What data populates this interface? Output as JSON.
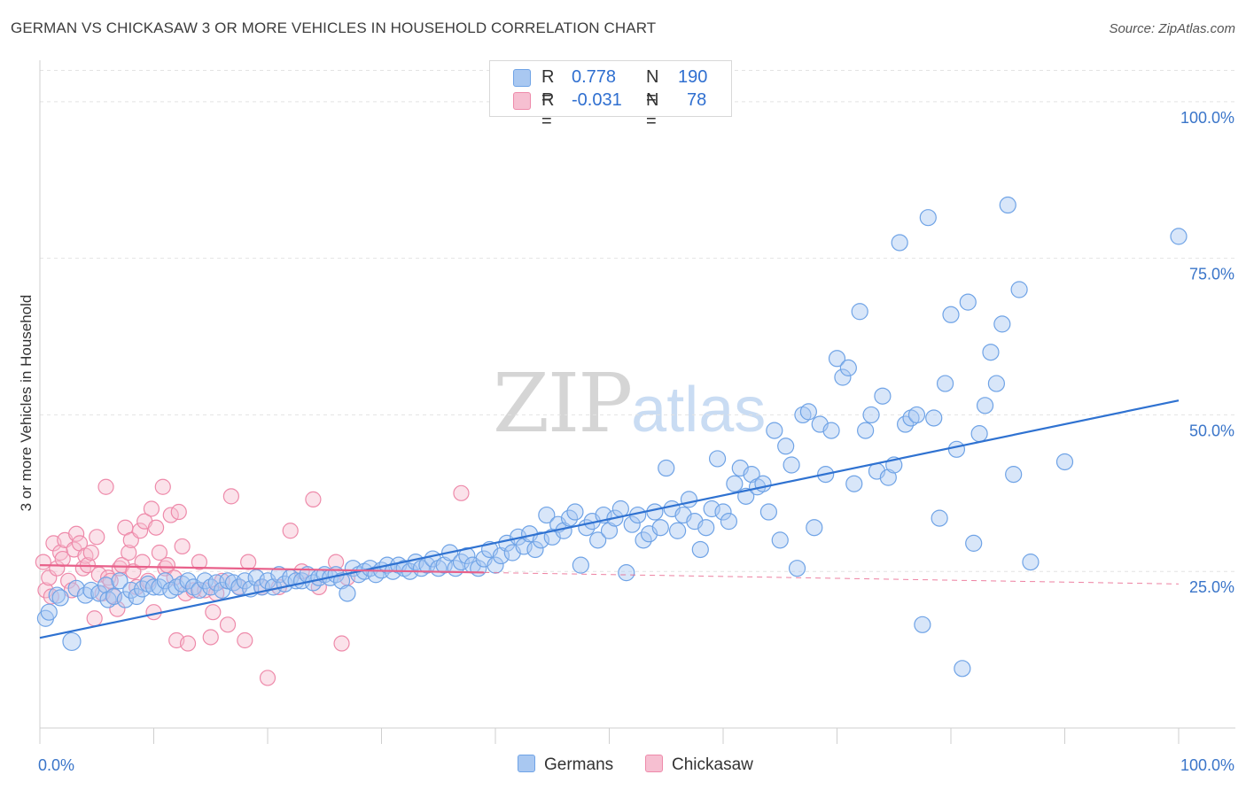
{
  "title": "GERMAN VS CHICKASAW 3 OR MORE VEHICLES IN HOUSEHOLD CORRELATION CHART",
  "source": "Source: ZipAtlas.com",
  "watermark": {
    "zip": "ZIP",
    "atlas": "atlas"
  },
  "colors": {
    "blue": "#6fa3e6",
    "blue_fill": "#a9c8f1",
    "blue_line": "#2f72d1",
    "pink": "#ee8aaa",
    "pink_fill": "#f6bfd1",
    "pink_line": "#e8608a",
    "tick_text": "#3a75c9"
  },
  "legend_top": [
    {
      "r_label": "R =",
      "r_value": "0.778",
      "n_label": "N =",
      "n_value": "190"
    },
    {
      "r_label": "R =",
      "r_value": "-0.031",
      "n_label": "N =",
      "n_value": "78"
    }
  ],
  "legend_bottom": [
    {
      "label": "Germans"
    },
    {
      "label": "Chickasaw"
    }
  ],
  "chart_data": {
    "type": "scatter",
    "title": "GERMAN VS CHICKASAW 3 OR MORE VEHICLES IN HOUSEHOLD CORRELATION CHART",
    "xlabel": "",
    "ylabel": "3 or more Vehicles in Household",
    "xlim": [
      0,
      100
    ],
    "ylim": [
      0,
      105
    ],
    "x_tick_labels": [
      "0.0%",
      "100.0%"
    ],
    "y_ticks": [
      25,
      50,
      75,
      100
    ],
    "y_tick_labels": [
      "25.0%",
      "50.0%",
      "75.0%",
      "100.0%"
    ],
    "grid": "horizontal dashed",
    "legend_position": "top-center",
    "series": [
      {
        "name": "Germans",
        "r": 0.778,
        "n": 190,
        "trend": {
          "x": [
            0,
            100
          ],
          "y": [
            14.4,
            52.3
          ],
          "style": "solid"
        },
        "points": [
          [
            0.5,
            17.5
          ],
          [
            0.8,
            18.5
          ],
          [
            1.5,
            21.2
          ],
          [
            1.8,
            20.8
          ],
          [
            2.8,
            13.8
          ],
          [
            3.2,
            22.3
          ],
          [
            4.0,
            21.2
          ],
          [
            4.5,
            22.0
          ],
          [
            5.2,
            21.5
          ],
          [
            5.8,
            22.8
          ],
          [
            6.0,
            20.5
          ],
          [
            6.5,
            21.0
          ],
          [
            7.0,
            23.5
          ],
          [
            7.5,
            20.5
          ],
          [
            8.0,
            22.0
          ],
          [
            8.5,
            21.0
          ],
          [
            9.0,
            22.2
          ],
          [
            9.5,
            23.0
          ],
          [
            10.0,
            22.5
          ],
          [
            10.5,
            22.5
          ],
          [
            11.0,
            23.5
          ],
          [
            11.5,
            22.0
          ],
          [
            12.0,
            22.5
          ],
          [
            12.5,
            23.0
          ],
          [
            13.0,
            23.5
          ],
          [
            13.5,
            22.5
          ],
          [
            14.0,
            22.0
          ],
          [
            14.5,
            23.5
          ],
          [
            15.0,
            22.5
          ],
          [
            15.5,
            23.2
          ],
          [
            16.0,
            22.0
          ],
          [
            16.5,
            23.5
          ],
          [
            17.0,
            23.2
          ],
          [
            17.5,
            22.5
          ],
          [
            18.0,
            23.5
          ],
          [
            18.5,
            22.2
          ],
          [
            19.0,
            24.0
          ],
          [
            19.5,
            22.5
          ],
          [
            20.0,
            23.5
          ],
          [
            20.5,
            22.5
          ],
          [
            21.0,
            24.5
          ],
          [
            21.5,
            23.0
          ],
          [
            22.0,
            24.0
          ],
          [
            22.5,
            23.5
          ],
          [
            23.0,
            23.5
          ],
          [
            23.5,
            24.5
          ],
          [
            24.0,
            23.2
          ],
          [
            24.5,
            24.0
          ],
          [
            25.0,
            24.5
          ],
          [
            25.5,
            24.0
          ],
          [
            26.0,
            24.5
          ],
          [
            26.5,
            23.5
          ],
          [
            27.0,
            21.5
          ],
          [
            27.5,
            25.5
          ],
          [
            28.0,
            24.5
          ],
          [
            28.5,
            25.0
          ],
          [
            29.0,
            25.5
          ],
          [
            29.5,
            24.5
          ],
          [
            30.0,
            25.2
          ],
          [
            30.5,
            26.0
          ],
          [
            31.0,
            25.0
          ],
          [
            31.5,
            26.0
          ],
          [
            32.0,
            25.5
          ],
          [
            32.5,
            25.0
          ],
          [
            33.0,
            26.5
          ],
          [
            33.5,
            25.5
          ],
          [
            34.0,
            26.0
          ],
          [
            34.5,
            27.0
          ],
          [
            35.0,
            25.5
          ],
          [
            35.5,
            26.0
          ],
          [
            36.0,
            28.0
          ],
          [
            36.5,
            25.5
          ],
          [
            37.0,
            26.5
          ],
          [
            37.5,
            27.5
          ],
          [
            38.0,
            26.0
          ],
          [
            38.5,
            25.5
          ],
          [
            39.0,
            27.0
          ],
          [
            39.5,
            28.5
          ],
          [
            40.0,
            26.0
          ],
          [
            40.5,
            27.5
          ],
          [
            41.0,
            29.5
          ],
          [
            41.5,
            28.0
          ],
          [
            42.0,
            30.5
          ],
          [
            42.5,
            29.0
          ],
          [
            43.0,
            31.0
          ],
          [
            43.5,
            28.5
          ],
          [
            44.0,
            30.0
          ],
          [
            44.5,
            34.0
          ],
          [
            45.0,
            30.5
          ],
          [
            45.5,
            32.5
          ],
          [
            46.0,
            31.5
          ],
          [
            46.5,
            33.5
          ],
          [
            47.0,
            34.5
          ],
          [
            47.5,
            26.0
          ],
          [
            48.0,
            32.0
          ],
          [
            48.5,
            33.0
          ],
          [
            49.0,
            30.0
          ],
          [
            49.5,
            34.0
          ],
          [
            50.0,
            31.5
          ],
          [
            50.5,
            33.5
          ],
          [
            51.0,
            35.0
          ],
          [
            51.5,
            24.8
          ],
          [
            52.0,
            32.5
          ],
          [
            52.5,
            34.0
          ],
          [
            53.0,
            30.0
          ],
          [
            53.5,
            31.0
          ],
          [
            54.0,
            34.5
          ],
          [
            54.5,
            32.0
          ],
          [
            55.0,
            41.5
          ],
          [
            55.5,
            35.0
          ],
          [
            56.0,
            31.5
          ],
          [
            56.5,
            34.0
          ],
          [
            57.0,
            36.5
          ],
          [
            57.5,
            33.0
          ],
          [
            58.0,
            28.5
          ],
          [
            58.5,
            32.0
          ],
          [
            59.0,
            35.0
          ],
          [
            59.5,
            43.0
          ],
          [
            60.0,
            34.5
          ],
          [
            60.5,
            33.0
          ],
          [
            61.0,
            39.0
          ],
          [
            61.5,
            41.5
          ],
          [
            62.0,
            37.0
          ],
          [
            62.5,
            40.5
          ],
          [
            63.0,
            38.5
          ],
          [
            63.5,
            39.0
          ],
          [
            64.0,
            34.5
          ],
          [
            64.5,
            47.5
          ],
          [
            65.0,
            30.0
          ],
          [
            65.5,
            45.0
          ],
          [
            66.0,
            42.0
          ],
          [
            66.5,
            25.5
          ],
          [
            67.0,
            50.0
          ],
          [
            67.5,
            50.5
          ],
          [
            68.0,
            32.0
          ],
          [
            68.5,
            48.5
          ],
          [
            69.0,
            40.5
          ],
          [
            69.5,
            47.5
          ],
          [
            70.0,
            59.0
          ],
          [
            70.5,
            56.0
          ],
          [
            71.0,
            57.5
          ],
          [
            71.5,
            39.0
          ],
          [
            72.0,
            66.5
          ],
          [
            72.5,
            47.5
          ],
          [
            73.0,
            50.0
          ],
          [
            73.5,
            41.0
          ],
          [
            74.0,
            53.0
          ],
          [
            74.5,
            40.0
          ],
          [
            75.0,
            42.0
          ],
          [
            75.5,
            77.5
          ],
          [
            76.0,
            48.5
          ],
          [
            76.5,
            49.5
          ],
          [
            77.0,
            50.0
          ],
          [
            77.5,
            16.5
          ],
          [
            78.0,
            81.5
          ],
          [
            78.5,
            49.5
          ],
          [
            79.0,
            33.5
          ],
          [
            79.5,
            55.0
          ],
          [
            80.0,
            66.0
          ],
          [
            80.5,
            44.5
          ],
          [
            81.0,
            9.5
          ],
          [
            81.5,
            68.0
          ],
          [
            82.0,
            29.5
          ],
          [
            82.5,
            47.0
          ],
          [
            83.0,
            51.5
          ],
          [
            83.5,
            60.0
          ],
          [
            84.0,
            55.0
          ],
          [
            84.5,
            64.5
          ],
          [
            85.0,
            83.5
          ],
          [
            85.5,
            40.5
          ],
          [
            86.0,
            70.0
          ],
          [
            87.0,
            26.5
          ],
          [
            90.0,
            42.5
          ],
          [
            100.0,
            78.5
          ]
        ]
      },
      {
        "name": "Chickasaw",
        "r": -0.031,
        "n": 78,
        "trend": {
          "x": [
            0,
            100
          ],
          "y": [
            26.0,
            23.0
          ],
          "solid_until_x": 39,
          "style": "solid then dashed"
        },
        "points": [
          [
            0.3,
            26.5
          ],
          [
            0.5,
            22.0
          ],
          [
            0.8,
            24.0
          ],
          [
            1.0,
            21.0
          ],
          [
            1.2,
            29.5
          ],
          [
            1.5,
            25.5
          ],
          [
            1.8,
            28.0
          ],
          [
            2.0,
            27.0
          ],
          [
            2.2,
            30.0
          ],
          [
            2.5,
            23.5
          ],
          [
            2.8,
            22.0
          ],
          [
            3.0,
            28.5
          ],
          [
            3.2,
            31.0
          ],
          [
            3.5,
            29.5
          ],
          [
            3.8,
            25.5
          ],
          [
            4.0,
            27.5
          ],
          [
            4.2,
            26.0
          ],
          [
            4.5,
            28.0
          ],
          [
            4.8,
            17.5
          ],
          [
            5.0,
            30.5
          ],
          [
            5.2,
            24.5
          ],
          [
            5.5,
            21.5
          ],
          [
            5.8,
            38.5
          ],
          [
            6.0,
            24.0
          ],
          [
            6.2,
            23.5
          ],
          [
            6.5,
            21.0
          ],
          [
            6.8,
            19.0
          ],
          [
            7.0,
            25.5
          ],
          [
            7.2,
            26.0
          ],
          [
            7.5,
            32.0
          ],
          [
            7.8,
            28.0
          ],
          [
            8.0,
            30.0
          ],
          [
            8.2,
            25.0
          ],
          [
            8.5,
            22.5
          ],
          [
            8.8,
            31.5
          ],
          [
            9.0,
            26.5
          ],
          [
            9.2,
            33.0
          ],
          [
            9.5,
            23.5
          ],
          [
            9.8,
            35.0
          ],
          [
            10.0,
            18.5
          ],
          [
            10.2,
            32.0
          ],
          [
            10.5,
            28.0
          ],
          [
            10.8,
            38.5
          ],
          [
            11.0,
            25.5
          ],
          [
            11.2,
            26.0
          ],
          [
            11.5,
            34.0
          ],
          [
            11.8,
            24.0
          ],
          [
            12.0,
            14.0
          ],
          [
            12.2,
            34.5
          ],
          [
            12.5,
            29.0
          ],
          [
            12.8,
            21.5
          ],
          [
            13.0,
            13.5
          ],
          [
            13.5,
            22.0
          ],
          [
            14.0,
            26.5
          ],
          [
            14.5,
            22.0
          ],
          [
            15.0,
            14.5
          ],
          [
            15.2,
            18.5
          ],
          [
            15.5,
            21.5
          ],
          [
            16.0,
            23.5
          ],
          [
            16.5,
            16.5
          ],
          [
            16.8,
            37.0
          ],
          [
            17.5,
            22.5
          ],
          [
            18.0,
            14.0
          ],
          [
            18.3,
            26.5
          ],
          [
            19.5,
            22.5
          ],
          [
            20.0,
            8.0
          ],
          [
            21.0,
            22.5
          ],
          [
            22.0,
            31.5
          ],
          [
            23.0,
            25.0
          ],
          [
            24.0,
            36.5
          ],
          [
            24.5,
            22.5
          ],
          [
            26.0,
            26.5
          ],
          [
            26.5,
            13.5
          ],
          [
            27.0,
            24.0
          ],
          [
            37.0,
            37.5
          ]
        ]
      }
    ]
  }
}
